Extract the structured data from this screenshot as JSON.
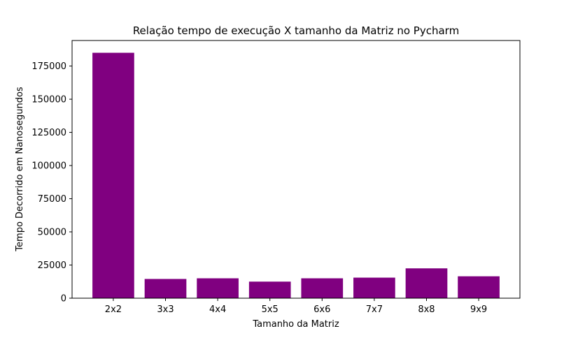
{
  "chart_data": {
    "type": "bar",
    "title": "Relação tempo de execução X tamanho da Matriz no Pycharm",
    "xlabel": "Tamanho da Matriz",
    "ylabel": "Tempo Decorrido em Nanosegundos",
    "categories": [
      "2x2",
      "3x3",
      "4x4",
      "5x5",
      "6x6",
      "7x7",
      "8x8",
      "9x9"
    ],
    "values": [
      185000,
      14500,
      15000,
      12500,
      15000,
      15500,
      22500,
      16500
    ],
    "ylim": [
      0,
      194250
    ],
    "yticks": [
      0,
      25000,
      50000,
      75000,
      100000,
      125000,
      150000,
      175000
    ],
    "bar_color": "#800080",
    "grid": false,
    "legend": "none"
  }
}
